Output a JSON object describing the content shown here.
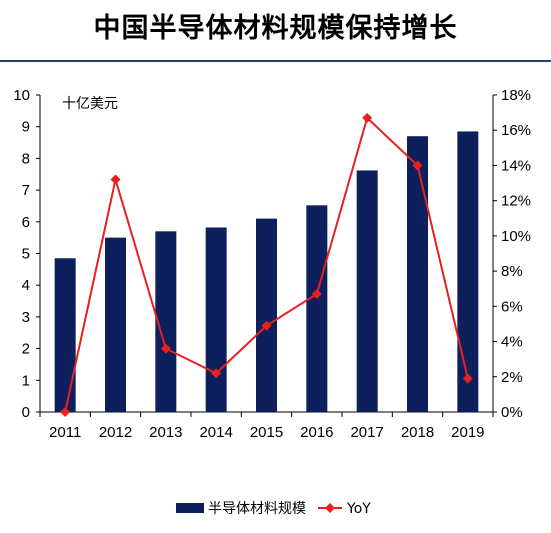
{
  "header": {
    "title": "中国半导体材料规模保持增长"
  },
  "chart_data": {
    "type": "bar",
    "categories": [
      "2011",
      "2012",
      "2013",
      "2014",
      "2015",
      "2016",
      "2017",
      "2018",
      "2019"
    ],
    "series": [
      {
        "name": "半导体材料规模",
        "type": "bar",
        "axis": "left",
        "values": [
          4.85,
          5.5,
          5.7,
          5.82,
          6.1,
          6.52,
          7.62,
          8.7,
          8.85
        ]
      },
      {
        "name": "YoY",
        "type": "line",
        "axis": "right",
        "values": [
          0.0,
          13.2,
          3.6,
          2.2,
          4.9,
          6.7,
          16.7,
          14.0,
          1.9
        ]
      }
    ],
    "y_left": {
      "unit_label": "十亿美元",
      "ylim": [
        0,
        10
      ],
      "ticks": [
        "0",
        "1",
        "2",
        "3",
        "4",
        "5",
        "6",
        "7",
        "8",
        "9",
        "10"
      ]
    },
    "y_right": {
      "ylim": [
        0,
        18
      ],
      "ticks": [
        "0%",
        "2%",
        "4%",
        "6%",
        "8%",
        "10%",
        "12%",
        "14%",
        "16%",
        "18%"
      ]
    },
    "legend": {
      "placement": "bottom",
      "items": [
        "半导体材料规模",
        "YoY"
      ]
    },
    "grid": false,
    "colors": {
      "bar": "#0d1f5c",
      "line": "#e8201e"
    }
  }
}
